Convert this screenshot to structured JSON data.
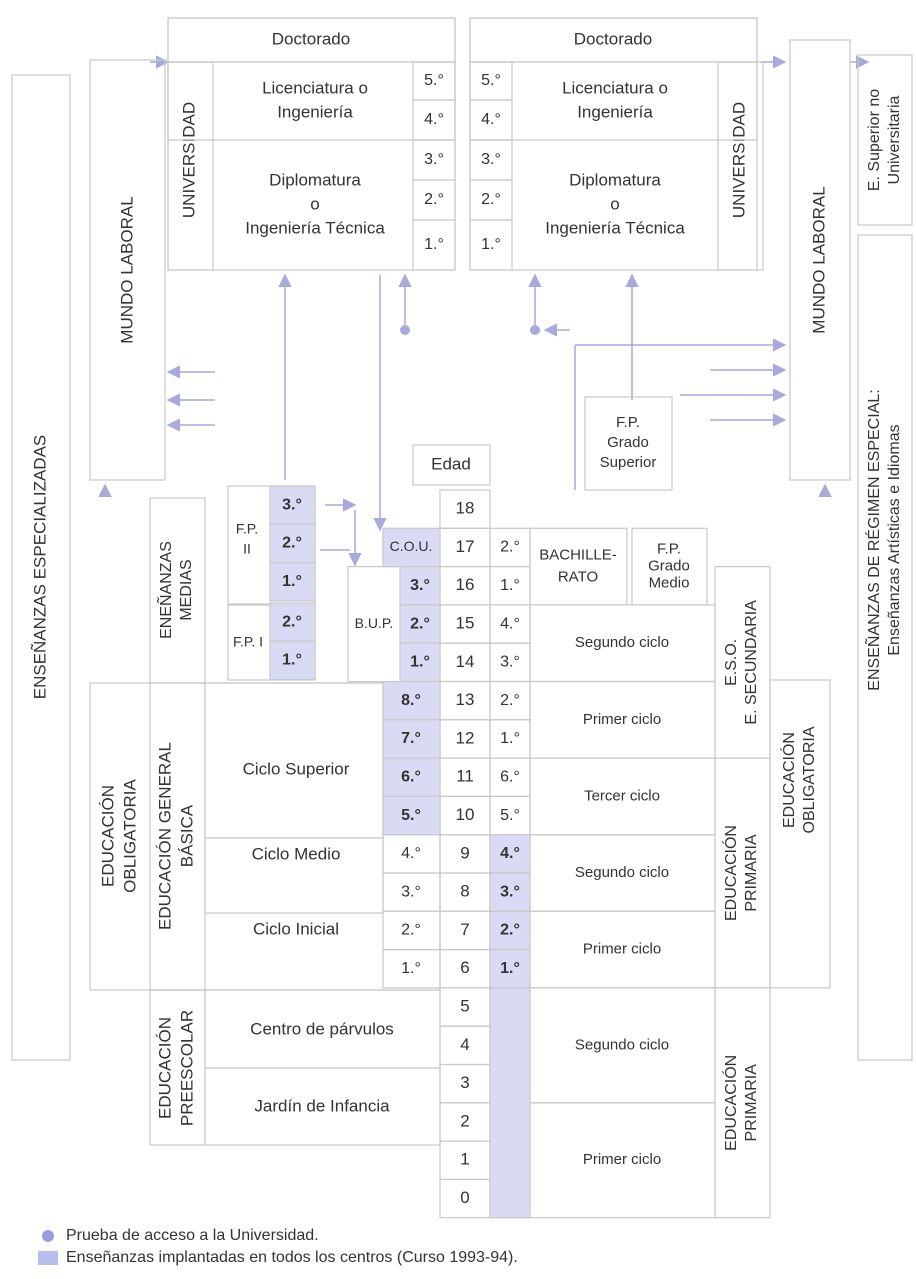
{
  "left_panels": {
    "especializadas": "ENSEÑANZAS ESPECIALIZADAS",
    "mundo_laboral": "MUNDO LABORAL"
  },
  "right_panels": {
    "mundo_laboral": "MUNDO LABORAL",
    "superior_no_univ": [
      "E. Superior no",
      "Universitaria"
    ],
    "regimen_especial": [
      "ENSEÑANZAS DE RÉGIMEN ESPECIAL:",
      "Enseñanzas Artísticas e Idiomas"
    ]
  },
  "university_left": {
    "doctorado": "Doctorado",
    "label": "UNIVERSIDAD",
    "licenciatura": [
      "Licenciatura o",
      "Ingeniería"
    ],
    "diplomatura": [
      "Diplomatura",
      "o",
      "Ingeniería Técnica"
    ],
    "years": [
      "5.°",
      "4.°",
      "3.°",
      "2.°",
      "1.°"
    ]
  },
  "university_right": {
    "doctorado": "Doctorado",
    "label": "UNIVERSIDAD",
    "licenciatura": [
      "Licenciatura o",
      "Ingeniería"
    ],
    "diplomatura": [
      "Diplomatura",
      "o",
      "Ingeniería Técnica"
    ],
    "years": [
      "5.°",
      "4.°",
      "3.°",
      "2.°",
      "1.°"
    ]
  },
  "age": {
    "label": "Edad",
    "values": [
      18,
      17,
      16,
      15,
      14,
      13,
      12,
      11,
      10,
      9,
      8,
      7,
      6,
      5,
      4,
      3,
      2,
      1,
      0
    ]
  },
  "old_system": {
    "medias_label": [
      "ENEÑANZAS",
      "MEDIAS"
    ],
    "fp2": {
      "label": [
        "F.P.",
        "II"
      ],
      "years": [
        "3.°",
        "2.°",
        "1.°"
      ]
    },
    "fp1": {
      "label": "F.P. I",
      "years": [
        "2.°",
        "1.°"
      ]
    },
    "cou": "C.O.U.",
    "bup": {
      "label": "B.U.P.",
      "years": [
        "3.°",
        "2.°",
        "1.°"
      ]
    },
    "obligatoria_label": [
      "EDUCACIÓN",
      "OBLIGATORIA"
    ],
    "egb_label": [
      "EDUCACIÓN GENERAL",
      "BÁSICA"
    ],
    "egb_years": [
      "8.°",
      "7.°",
      "6.°",
      "5.°",
      "4.°",
      "3.°",
      "2.°",
      "1.°"
    ],
    "egb_cycles": [
      "Ciclo Superior",
      "Ciclo Medio",
      "Ciclo Inicial"
    ],
    "preescolar_label": [
      "EDUCACIÓN",
      "PREESCOLAR"
    ],
    "preescolar_cycles": [
      "Centro de párvulos",
      "Jardín de Infancia"
    ]
  },
  "new_system": {
    "bach_years": [
      "2.°",
      "1.°"
    ],
    "bachillerato": [
      "BACHILLE-",
      "RATO"
    ],
    "fp_medio": [
      "F.P.",
      "Grado",
      "Medio"
    ],
    "fp_superior": [
      "F.P.",
      "Grado",
      "Superior"
    ],
    "eso_years": [
      "4.°",
      "3.°",
      "2.°",
      "1.°"
    ],
    "eso_cycles": [
      "Segundo ciclo",
      "Primer ciclo"
    ],
    "eso_label": [
      "E.S.O.",
      "E. SECUNDARIA"
    ],
    "primaria_years": [
      "6.°",
      "5.°",
      "4.°",
      "3.°",
      "2.°",
      "1.°"
    ],
    "primaria_cycles": [
      "Tercer ciclo",
      "Segundo ciclo",
      "Primer ciclo"
    ],
    "primaria_label": [
      "EDUCACIÓN",
      "PRIMARIA"
    ],
    "obligatoria_label": [
      "EDUCACIÓN",
      "OBLIGATORIA"
    ],
    "infantil_cycles": [
      "Segundo ciclo",
      "Primer ciclo"
    ],
    "infantil_label": [
      "EDUCACIÓN",
      "PRIMARIA"
    ]
  },
  "legend": [
    "Prueba de acceso a la Universidad.",
    "Enseñanzas implantadas en todos los centros (Curso 1993-94)."
  ]
}
